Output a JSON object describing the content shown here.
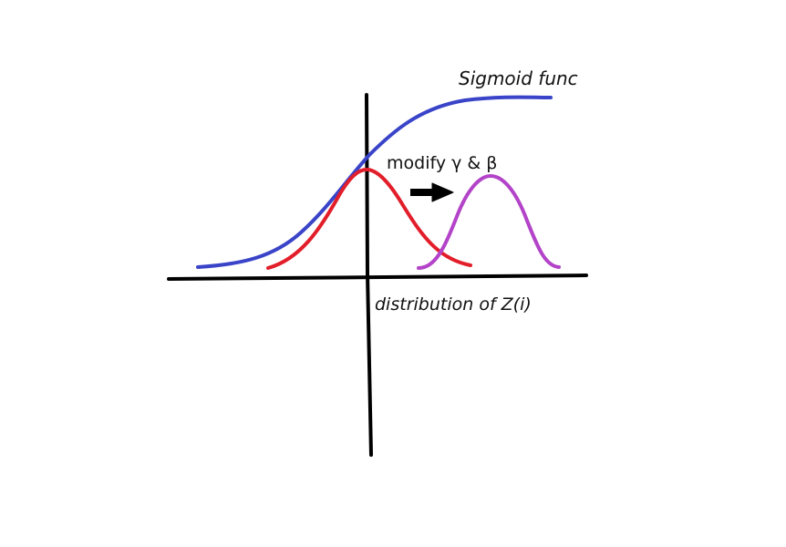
{
  "labels": {
    "sigmoid": "Sigmoid func",
    "modify": "modify γ & β",
    "distribution": "distribution of Z(i)"
  },
  "colors": {
    "axes": "#000000",
    "sigmoid_curve": "#3a44c8",
    "original_distribution": "#e21e2a",
    "shifted_distribution": "#b343c8",
    "arrow": "#000000",
    "background": "#ffffff"
  },
  "icons": {
    "shift_arrow": "right-arrow-icon"
  }
}
